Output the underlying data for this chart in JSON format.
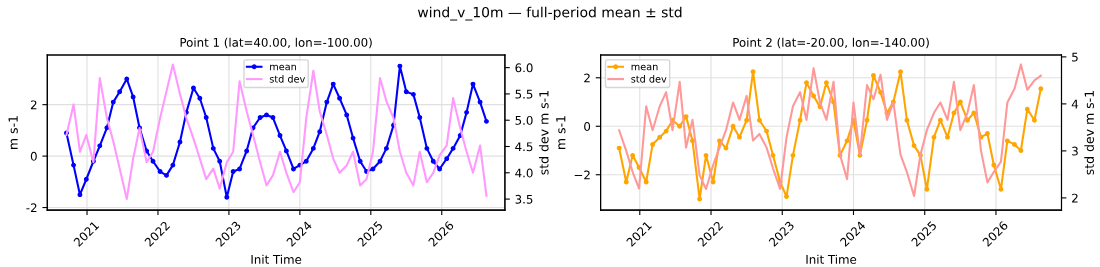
{
  "chart_data": [
    {
      "type": "line",
      "title": "Point 1 (lat=40.00, lon=-100.00)",
      "xlabel": "Init Time",
      "ylabel": "m s-1",
      "y2label": "std dev m s-1",
      "annotations": [
        "wind_v_10m — full-period mean ± std"
      ],
      "x": [
        2020.71,
        2020.81,
        2020.9,
        2020.99,
        2021.09,
        2021.18,
        2021.28,
        2021.37,
        2021.46,
        2021.56,
        2021.65,
        2021.74,
        2021.84,
        2021.93,
        2022.03,
        2022.12,
        2022.21,
        2022.31,
        2022.4,
        2022.5,
        2022.59,
        2022.68,
        2022.78,
        2022.87,
        2022.97,
        2023.06,
        2023.15,
        2023.25,
        2023.34,
        2023.44,
        2023.53,
        2023.62,
        2023.72,
        2023.81,
        2023.91,
        2024.0,
        2024.09,
        2024.19,
        2024.28,
        2024.38,
        2024.47,
        2024.56,
        2024.66,
        2024.75,
        2024.85,
        2024.94,
        2025.03,
        2025.13,
        2025.22,
        2025.32,
        2025.41,
        2025.5,
        2025.6,
        2025.69,
        2025.79,
        2025.88,
        2025.97,
        2026.07,
        2026.16,
        2026.26,
        2026.35,
        2026.44,
        2026.54,
        2026.63
      ],
      "series": [
        {
          "name": "mean",
          "color": "#0000ff",
          "marker": "circle",
          "values": [
            0.9,
            -0.35,
            -1.5,
            -0.9,
            -0.2,
            0.4,
            1.1,
            2.1,
            2.5,
            3.0,
            2.3,
            1.1,
            0.2,
            -0.2,
            -0.6,
            -0.75,
            -0.35,
            0.55,
            1.7,
            2.65,
            2.25,
            1.5,
            0.3,
            -0.2,
            -1.6,
            -0.6,
            -0.5,
            0.2,
            1.1,
            1.5,
            1.6,
            1.5,
            0.8,
            0.2,
            -0.5,
            -0.35,
            -0.2,
            0.3,
            0.95,
            2.1,
            2.8,
            2.25,
            1.6,
            0.7,
            -0.2,
            -0.6,
            -0.5,
            -0.2,
            0.3,
            1.2,
            3.5,
            2.5,
            2.4,
            1.5,
            0.3,
            -0.2,
            -0.5,
            -0.1,
            0.3,
            0.8,
            1.7,
            2.8,
            2.1,
            1.35
          ]
        },
        {
          "name": "std dev",
          "color": "#ff99ff",
          "axis": "y2",
          "marker": "none",
          "values": [
            4.72,
            5.3,
            4.4,
            4.72,
            4.2,
            5.8,
            5.04,
            4.6,
            4.08,
            3.5,
            4.27,
            4.85,
            4.2,
            4.4,
            5.04,
            5.55,
            6.06,
            5.5,
            5.04,
            4.65,
            4.27,
            3.88,
            4.08,
            3.7,
            4.2,
            4.4,
            5.74,
            5.17,
            4.72,
            4.2,
            3.76,
            3.95,
            4.4,
            4.0,
            3.63,
            3.82,
            5.04,
            5.94,
            5.17,
            4.72,
            4.27,
            4.0,
            4.14,
            4.4,
            3.76,
            3.88,
            4.4,
            5.8,
            5.36,
            5.04,
            4.4,
            4.0,
            3.76,
            4.4,
            3.82,
            4.0,
            4.33,
            4.52,
            5.42,
            4.85,
            4.4,
            4.0,
            4.52,
            3.56
          ]
        }
      ],
      "xlim": [
        2020.44,
        2026.89
      ],
      "xticks": [
        2021,
        2022,
        2023,
        2024,
        2025,
        2026
      ],
      "ylim": [
        -2.1,
        3.93
      ],
      "yticks": [
        -2,
        0,
        2
      ],
      "y2lim": [
        3.29,
        6.24
      ],
      "y2ticks": [
        3.5,
        {
          "value": 4,
          "label": "4.0"
        },
        4.5,
        {
          "value": 5,
          "label": "5.0"
        },
        5.5,
        {
          "value": 6,
          "label": "6.0"
        }
      ],
      "grid": true,
      "legend": "top",
      "line_style": "solid"
    },
    {
      "type": "line",
      "title": "Point 2 (lat=-20.00, lon=-140.00)",
      "xlabel": "Init Time",
      "ylabel": "m s-1",
      "y2label": "std dev m s-1",
      "x": [
        2020.71,
        2020.81,
        2020.9,
        2020.99,
        2021.09,
        2021.18,
        2021.28,
        2021.37,
        2021.46,
        2021.56,
        2021.65,
        2021.74,
        2021.84,
        2021.93,
        2022.03,
        2022.12,
        2022.21,
        2022.31,
        2022.4,
        2022.5,
        2022.59,
        2022.68,
        2022.78,
        2022.87,
        2022.97,
        2023.06,
        2023.15,
        2023.25,
        2023.34,
        2023.44,
        2023.53,
        2023.62,
        2023.72,
        2023.81,
        2023.91,
        2024.0,
        2024.09,
        2024.19,
        2024.28,
        2024.38,
        2024.47,
        2024.56,
        2024.66,
        2024.75,
        2024.85,
        2024.94,
        2025.03,
        2025.13,
        2025.22,
        2025.32,
        2025.41,
        2025.5,
        2025.6,
        2025.69,
        2025.79,
        2025.88,
        2025.97,
        2026.07,
        2026.16,
        2026.26,
        2026.35,
        2026.44,
        2026.54,
        2026.63
      ],
      "series": [
        {
          "name": "mean",
          "color": "#ffa500",
          "marker": "circle",
          "values": [
            -0.9,
            -2.3,
            -1.2,
            -1.7,
            -2.3,
            -0.75,
            -0.45,
            -0.2,
            0.25,
            0,
            0.4,
            -0.6,
            -3.0,
            -1.2,
            -2.3,
            -0.6,
            -0.9,
            0,
            -0.45,
            0.25,
            2.25,
            0.25,
            -0.2,
            -1.2,
            -2.3,
            -2.9,
            -1.2,
            0.25,
            1.8,
            1.25,
            0.8,
            1.8,
            1.0,
            -1.2,
            -0.6,
            0.25,
            -1.2,
            0.25,
            2.1,
            1.4,
            0.55,
            1.0,
            2.25,
            0.25,
            -0.8,
            -1.2,
            -2.6,
            -0.45,
            0.25,
            -0.45,
            0.55,
            1.0,
            0.25,
            0.55,
            -0.45,
            -0.3,
            -1.6,
            -2.6,
            -0.6,
            -0.75,
            -1.0,
            0.7,
            0.25,
            1.55
          ]
        },
        {
          "name": "std dev",
          "color": "#ff9999",
          "axis": "y2",
          "marker": "none",
          "values": [
            3.44,
            3.0,
            2.55,
            2.2,
            3.95,
            3.44,
            3.95,
            4.25,
            3.44,
            4.47,
            3.07,
            3.66,
            2.48,
            2.19,
            2.7,
            3.07,
            3.44,
            4.03,
            3.66,
            4.17,
            3.22,
            3.36,
            3.07,
            2.63,
            2.19,
            3.29,
            3.95,
            4.25,
            3.66,
            4.76,
            4.03,
            3.66,
            4.47,
            2.92,
            2.4,
            4.03,
            2.92,
            4.4,
            4.1,
            4.62,
            3.66,
            4.03,
            2.92,
            2.55,
            2.04,
            2.92,
            3.44,
            3.81,
            4.03,
            3.66,
            4.47,
            3.44,
            3.81,
            4.4,
            3.0,
            2.33,
            2.55,
            2.77,
            4.03,
            4.32,
            4.84,
            4.3,
            4.5,
            4.6
          ]
        }
      ],
      "xlim": [
        2020.45,
        2026.92
      ],
      "xticks": [
        2021,
        2022,
        2023,
        2024,
        2025,
        2026
      ],
      "ylim": [
        -3.46,
        2.94
      ],
      "yticks": [
        {
          "value": -2,
          "label": "−2"
        },
        0,
        2
      ],
      "y2lim": [
        1.74,
        5.04
      ],
      "y2ticks": [
        2,
        3,
        4,
        5
      ],
      "grid": true,
      "legend": "top left",
      "line_style": "solid"
    }
  ]
}
